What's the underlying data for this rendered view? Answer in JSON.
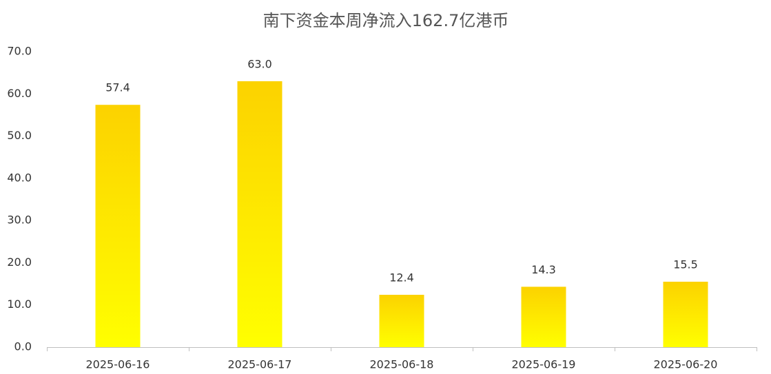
{
  "chart_data": {
    "type": "bar",
    "title": "南下资金本周净流入162.7亿港币",
    "categories": [
      "2025-06-16",
      "2025-06-17",
      "2025-06-18",
      "2025-06-19",
      "2025-06-20"
    ],
    "values": [
      57.4,
      63.0,
      12.4,
      14.3,
      15.5
    ],
    "value_labels": [
      "57.4",
      "63.0",
      "12.4",
      "14.3",
      "15.5"
    ],
    "color": "#fcd200",
    "ylim": [
      0,
      70
    ],
    "yticks": [
      {
        "value": 0,
        "label": "0.0"
      },
      {
        "value": 10,
        "label": "10.0"
      },
      {
        "value": 20,
        "label": "20.0"
      },
      {
        "value": 30,
        "label": "30.0"
      },
      {
        "value": 40,
        "label": "40.0"
      },
      {
        "value": 50,
        "label": "50.0"
      },
      {
        "value": 60,
        "label": "60.0"
      },
      {
        "value": 70,
        "label": "70.0"
      }
    ],
    "grid": false
  }
}
